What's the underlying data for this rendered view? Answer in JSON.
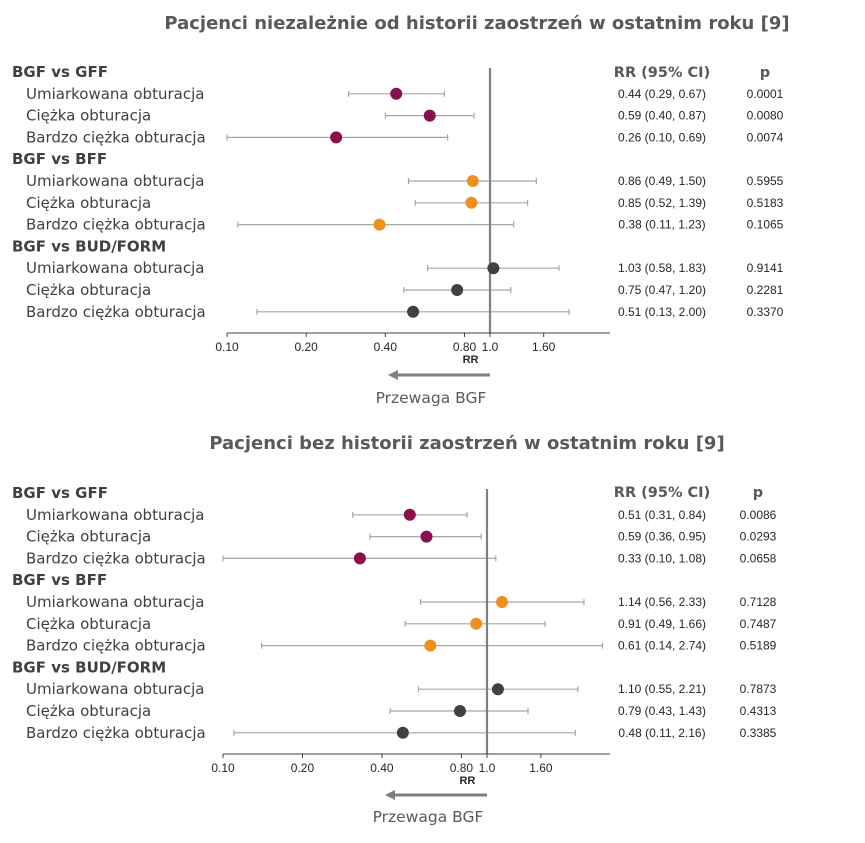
{
  "colors": {
    "gff": "#8b0e4d",
    "bff": "#f0901c",
    "budform": "#404040",
    "whisker": "#a6a6a6",
    "refline": "#7f7f7f",
    "axis": "#404040",
    "arrow": "#7f7f7f"
  },
  "chart_data": [
    {
      "type": "forest",
      "title": "Pacjenci niezależnie od historii zaostrzeń w ostatnim roku [9]",
      "xlabel": "RR",
      "x_scale": "log",
      "xlim": [
        0.1,
        3.2
      ],
      "x_ticks": [
        "0.10",
        "0.20",
        "0.40",
        "0.80",
        "1.0",
        "1.60"
      ],
      "x_tick_values": [
        0.1,
        0.2,
        0.4,
        0.8,
        1.0,
        1.6
      ],
      "reference_line": 1.0,
      "favors_label": "Przewaga BGF",
      "header_rr": "RR (95% CI)",
      "header_p": "p",
      "groups": [
        {
          "name": "BGF vs GFF",
          "color_key": "gff",
          "rows": [
            {
              "label": "Umiarkowana obturacja",
              "rr": 0.44,
              "lo": 0.29,
              "hi": 0.67,
              "ci_text": "0.44 (0.29, 0.67)",
              "p": "0.0001"
            },
            {
              "label": "Ciężka obturacja",
              "rr": 0.59,
              "lo": 0.4,
              "hi": 0.87,
              "ci_text": "0.59 (0.40, 0.87)",
              "p": "0.0080"
            },
            {
              "label": "Bardzo ciężka obturacja",
              "rr": 0.26,
              "lo": 0.1,
              "hi": 0.69,
              "ci_text": "0.26 (0.10, 0.69)",
              "p": "0.0074"
            }
          ]
        },
        {
          "name": "BGF vs BFF",
          "color_key": "bff",
          "rows": [
            {
              "label": "Umiarkowana obturacja",
              "rr": 0.86,
              "lo": 0.49,
              "hi": 1.5,
              "ci_text": "0.86 (0.49, 1.50)",
              "p": "0.5955"
            },
            {
              "label": "Ciężka obturacja",
              "rr": 0.85,
              "lo": 0.52,
              "hi": 1.39,
              "ci_text": "0.85 (0.52, 1.39)",
              "p": "0.5183"
            },
            {
              "label": "Bardzo ciężka obturacja",
              "rr": 0.38,
              "lo": 0.11,
              "hi": 1.23,
              "ci_text": "0.38 (0.11, 1.23)",
              "p": "0.1065"
            }
          ]
        },
        {
          "name": "BGF vs BUD/FORM",
          "color_key": "budform",
          "rows": [
            {
              "label": "Umiarkowana obturacja",
              "rr": 1.03,
              "lo": 0.58,
              "hi": 1.83,
              "ci_text": "1.03 (0.58, 1.83)",
              "p": "0.9141"
            },
            {
              "label": "Ciężka obturacja",
              "rr": 0.75,
              "lo": 0.47,
              "hi": 1.2,
              "ci_text": "0.75 (0.47, 1.20)",
              "p": "0.2281"
            },
            {
              "label": "Bardzo ciężka obturacja",
              "rr": 0.51,
              "lo": 0.13,
              "hi": 2.0,
              "ci_text": "0.51 (0.13, 2.00)",
              "p": "0.3370"
            }
          ]
        }
      ]
    },
    {
      "type": "forest",
      "title": "Pacjenci bez historii zaostrzeń w ostatnim roku [9]",
      "xlabel": "RR",
      "x_scale": "log",
      "xlim": [
        0.1,
        3.2
      ],
      "x_ticks": [
        "0.10",
        "0.20",
        "0.40",
        "0.80",
        "1.0",
        "1.60"
      ],
      "x_tick_values": [
        0.1,
        0.2,
        0.4,
        0.8,
        1.0,
        1.6
      ],
      "reference_line": 1.0,
      "favors_label": "Przewaga BGF",
      "header_rr": "RR (95% CI)",
      "header_p": "p",
      "groups": [
        {
          "name": "BGF vs GFF",
          "color_key": "gff",
          "rows": [
            {
              "label": "Umiarkowana obturacja",
              "rr": 0.51,
              "lo": 0.31,
              "hi": 0.84,
              "ci_text": "0.51 (0.31, 0.84)",
              "p": "0.0086"
            },
            {
              "label": "Ciężka obturacja",
              "rr": 0.59,
              "lo": 0.36,
              "hi": 0.95,
              "ci_text": "0.59 (0.36, 0.95)",
              "p": "0.0293"
            },
            {
              "label": "Bardzo ciężka obturacja",
              "rr": 0.33,
              "lo": 0.1,
              "hi": 1.08,
              "ci_text": "0.33 (0.10, 1.08)",
              "p": "0.0658"
            }
          ]
        },
        {
          "name": "BGF vs BFF",
          "color_key": "bff",
          "rows": [
            {
              "label": "Umiarkowana obturacja",
              "rr": 1.14,
              "lo": 0.56,
              "hi": 2.33,
              "ci_text": "1.14 (0.56, 2.33)",
              "p": "0.7128"
            },
            {
              "label": "Ciężka obturacja",
              "rr": 0.91,
              "lo": 0.49,
              "hi": 1.66,
              "ci_text": "0.91 (0.49, 1.66)",
              "p": "0.7487"
            },
            {
              "label": "Bardzo ciężka obturacja",
              "rr": 0.61,
              "lo": 0.14,
              "hi": 2.74,
              "ci_text": "0.61 (0.14, 2.74)",
              "p": "0.5189"
            }
          ]
        },
        {
          "name": "BGF vs BUD/FORM",
          "color_key": "budform",
          "rows": [
            {
              "label": "Umiarkowana obturacja",
              "rr": 1.1,
              "lo": 0.55,
              "hi": 2.21,
              "ci_text": "1.10 (0.55, 2.21)",
              "p": "0.7873"
            },
            {
              "label": "Ciężka obturacja",
              "rr": 0.79,
              "lo": 0.43,
              "hi": 1.43,
              "ci_text": "0.79 (0.43, 1.43)",
              "p": "0.4313"
            },
            {
              "label": "Bardzo ciężka obturacja",
              "rr": 0.48,
              "lo": 0.11,
              "hi": 2.16,
              "ci_text": "0.48 (0.11, 2.16)",
              "p": "0.3385"
            }
          ]
        }
      ]
    }
  ]
}
